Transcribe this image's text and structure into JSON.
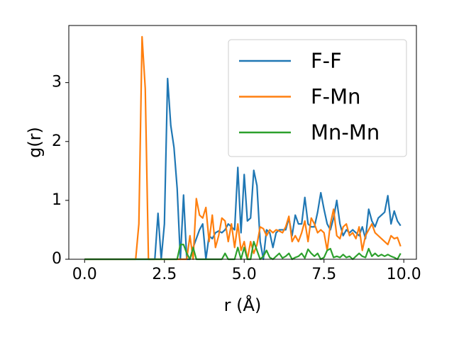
{
  "chart_data": {
    "type": "line",
    "xlabel": "r (Å)",
    "ylabel": "g(r)",
    "x": [
      0,
      0.1,
      0.2,
      0.3,
      0.4,
      0.5,
      0.6,
      0.7,
      0.8,
      0.9,
      1.0,
      1.1,
      1.2,
      1.3,
      1.4,
      1.5,
      1.6,
      1.7,
      1.8,
      1.9,
      2.0,
      2.1,
      2.2,
      2.3,
      2.4,
      2.5,
      2.6,
      2.7,
      2.8,
      2.9,
      3.0,
      3.1,
      3.2,
      3.3,
      3.4,
      3.5,
      3.6,
      3.7,
      3.8,
      3.9,
      4.0,
      4.1,
      4.2,
      4.3,
      4.4,
      4.5,
      4.6,
      4.7,
      4.8,
      4.9,
      5.0,
      5.1,
      5.2,
      5.3,
      5.4,
      5.5,
      5.6,
      5.7,
      5.8,
      5.9,
      6.0,
      6.1,
      6.2,
      6.3,
      6.4,
      6.5,
      6.6,
      6.7,
      6.8,
      6.9,
      7.0,
      7.1,
      7.2,
      7.3,
      7.4,
      7.5,
      7.6,
      7.7,
      7.8,
      7.9,
      8.0,
      8.1,
      8.2,
      8.3,
      8.4,
      8.5,
      8.6,
      8.7,
      8.8,
      8.9,
      9.0,
      9.1,
      9.2,
      9.3,
      9.4,
      9.5,
      9.6,
      9.7,
      9.8,
      9.9
    ],
    "series": [
      {
        "name": "F-F",
        "color": "#1f77b4",
        "values": [
          0,
          0,
          0,
          0,
          0,
          0,
          0,
          0,
          0,
          0,
          0,
          0,
          0,
          0,
          0,
          0,
          0,
          0,
          0,
          0,
          0,
          0,
          0,
          0.78,
          0,
          0.6,
          3.07,
          2.27,
          1.9,
          1.2,
          0,
          1.09,
          0,
          0,
          0.2,
          0.35,
          0.5,
          0.6,
          0,
          0.4,
          0.35,
          0.45,
          0.48,
          0.45,
          0.5,
          0.6,
          0.55,
          0.5,
          1.56,
          0.45,
          1.44,
          0.65,
          0.7,
          1.51,
          1.25,
          0.3,
          0,
          0.5,
          0.45,
          0.2,
          0.45,
          0.5,
          0.5,
          0.5,
          0.7,
          0.4,
          0.75,
          0.6,
          0.6,
          1.05,
          0.6,
          0.55,
          0.55,
          0.8,
          1.13,
          0.85,
          0.6,
          0.5,
          0.7,
          1.0,
          0.6,
          0.4,
          0.5,
          0.45,
          0.5,
          0.45,
          0.4,
          0.55,
          0.35,
          0.85,
          0.65,
          0.55,
          0.7,
          0.75,
          0.8,
          1.08,
          0.6,
          0.82,
          0.65,
          0.57
        ]
      },
      {
        "name": "F-Mn",
        "color": "#ff7f0e",
        "values": [
          0,
          0,
          0,
          0,
          0,
          0,
          0,
          0,
          0,
          0,
          0,
          0,
          0,
          0,
          0,
          0,
          0,
          0.6,
          3.78,
          2.9,
          0,
          0,
          0,
          0,
          0,
          0,
          0,
          0,
          0,
          0,
          0,
          0,
          0,
          0.4,
          0,
          1.03,
          0.75,
          0.7,
          0.88,
          0.3,
          0.75,
          0.2,
          0.4,
          0.7,
          0.65,
          0.3,
          0.6,
          0.2,
          0.6,
          0.15,
          0.3,
          0,
          0.3,
          0.1,
          0.25,
          0.55,
          0.52,
          0.4,
          0.5,
          0.45,
          0.5,
          0.48,
          0.45,
          0.55,
          0.73,
          0.3,
          0.4,
          0.3,
          0.45,
          0.65,
          0.3,
          0.7,
          0.6,
          0.45,
          0.5,
          0.45,
          0.15,
          0.6,
          0.85,
          0.4,
          0.35,
          0.55,
          0.6,
          0.4,
          0.45,
          0.35,
          0.55,
          0.15,
          0.4,
          0.5,
          0.6,
          0.45,
          0.4,
          0.35,
          0.3,
          0.25,
          0.4,
          0.35,
          0.37,
          0.22
        ]
      },
      {
        "name": "Mn-Mn",
        "color": "#2ca02c",
        "values": [
          0,
          0,
          0,
          0,
          0,
          0,
          0,
          0,
          0,
          0,
          0,
          0,
          0,
          0,
          0,
          0,
          0,
          0,
          0,
          0,
          0,
          0,
          0,
          0,
          0,
          0,
          0,
          0,
          0,
          0,
          0.25,
          0.25,
          0.1,
          0,
          0.2,
          0,
          0,
          0,
          0,
          0,
          0,
          0,
          0,
          0,
          0.1,
          0,
          0,
          0,
          0.2,
          0,
          0.2,
          0,
          0,
          0.3,
          0.15,
          0,
          0.05,
          0.15,
          0.03,
          0,
          0.05,
          0.1,
          0.02,
          0.05,
          0.1,
          0,
          0.03,
          0.05,
          0.1,
          0.02,
          0.17,
          0.1,
          0.05,
          0.1,
          0,
          0.03,
          0.15,
          0.18,
          0.03,
          0.05,
          0.03,
          0.08,
          0.03,
          0.05,
          0,
          0.05,
          0.1,
          0.05,
          0.03,
          0.18,
          0.05,
          0.1,
          0.05,
          0.08,
          0.05,
          0.08,
          0.05,
          0.03,
          0,
          0.1
        ]
      }
    ],
    "xlim": [
      -0.495,
      10.395
    ],
    "ylim": [
      0,
      3.97
    ],
    "xticks": [
      {
        "value": 0,
        "label": "0.0"
      },
      2.5,
      {
        "value": 5,
        "label": "5.0"
      },
      7.5,
      {
        "value": 10,
        "label": "10.0"
      }
    ],
    "yticks": [
      0,
      1,
      2,
      3
    ],
    "legend": "upper right"
  }
}
